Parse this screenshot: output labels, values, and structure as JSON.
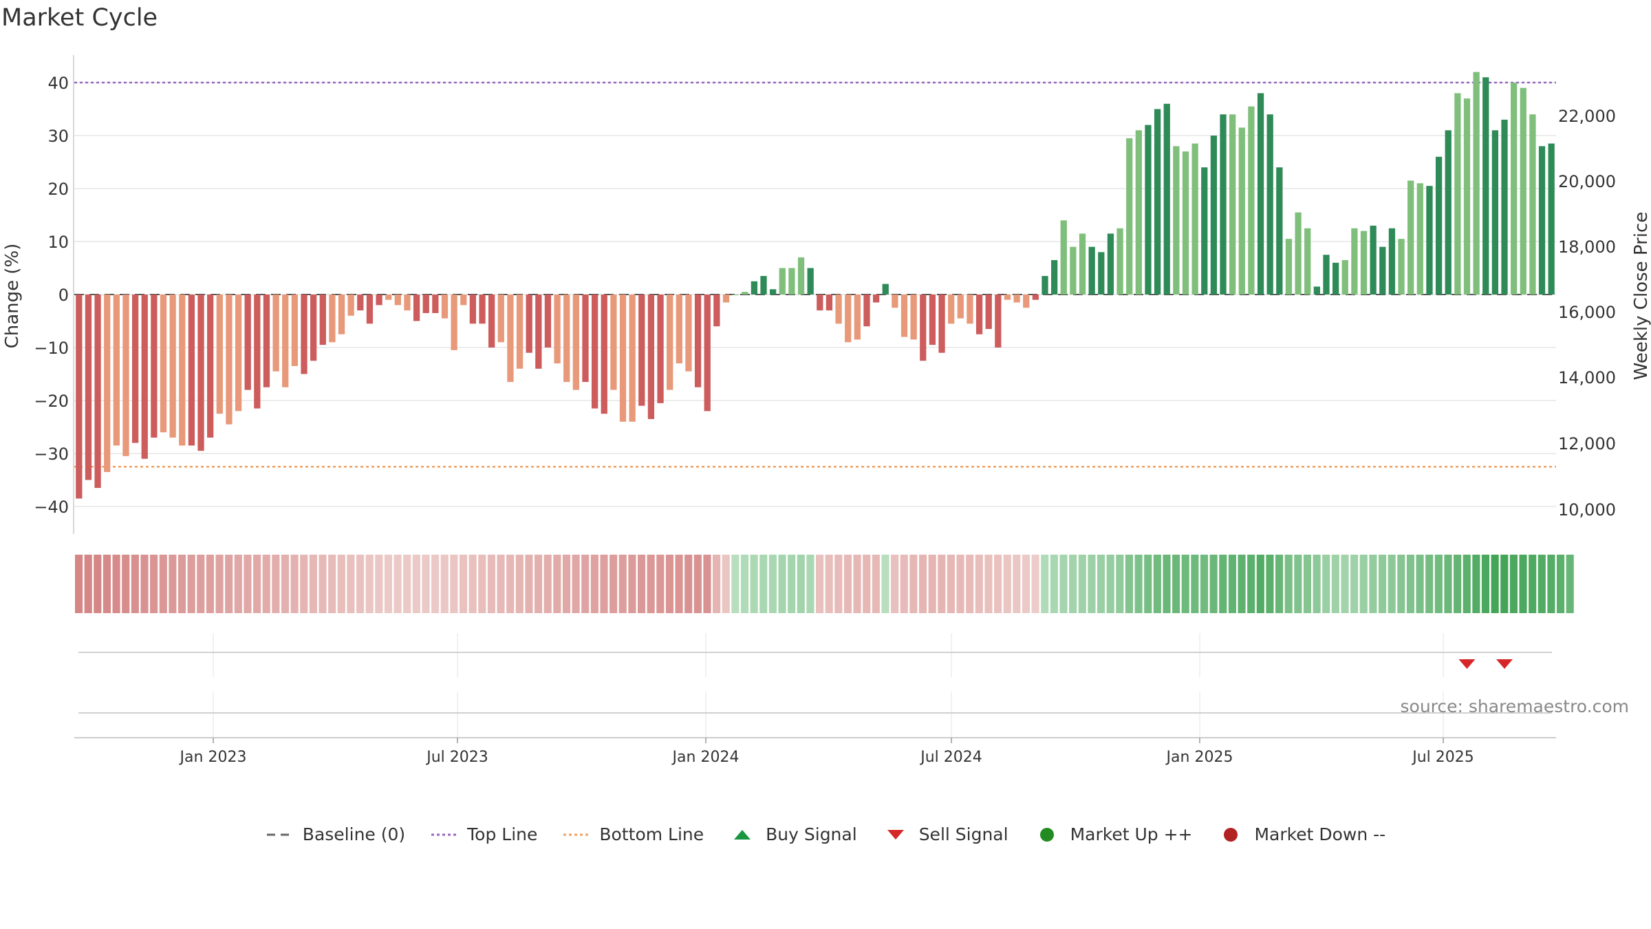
{
  "chart_data": {
    "type": "bar",
    "title": "Market Cycle",
    "ylabel": "Change (%)",
    "y2label": "Weekly Close Price",
    "ylim": [
      -45,
      45
    ],
    "yticks": [
      "40",
      "30",
      "20",
      "10",
      "0",
      "−10",
      "−20",
      "−30",
      "−40"
    ],
    "y2ticks": [
      "22,000",
      "20,000",
      "18,000",
      "16,000",
      "14,000",
      "12,000",
      "10,000"
    ],
    "xticks": [
      "Jan 2023",
      "Jul 2023",
      "Jan 2024",
      "Jul 2024",
      "Jan 2025",
      "Jul 2025"
    ],
    "grid": true,
    "top_line": 40,
    "bottom_line": -32.5,
    "baseline": 0,
    "source_note": "source: sharemaestro.com",
    "values": [
      -38.5,
      -35,
      -36.5,
      -33.5,
      -28.5,
      -30.5,
      -28,
      -31,
      -27,
      -26,
      -27,
      -28.5,
      -28.5,
      -29.5,
      -27,
      -22.5,
      -24.5,
      -22,
      -18,
      -21.5,
      -17.5,
      -14.5,
      -17.5,
      -13.5,
      -15,
      -12.5,
      -9.5,
      -9,
      -7.5,
      -4,
      -3,
      -5.5,
      -2,
      -1,
      -2,
      -3,
      -5,
      -3.5,
      -3.5,
      -4.5,
      -10.5,
      -2,
      -5.5,
      -5.5,
      -10,
      -9,
      -16.5,
      -14,
      -11,
      -14,
      -10,
      -13,
      -16.5,
      -18,
      -16.5,
      -21.5,
      -22.5,
      -18,
      -24,
      -24,
      -21,
      -23.5,
      -20.5,
      -18,
      -13,
      -14.5,
      -17.5,
      -22,
      -6,
      -1.5,
      0,
      0.5,
      2.5,
      3.5,
      1,
      5,
      5,
      7,
      5,
      -3,
      -3,
      -5.5,
      -9,
      -8.5,
      -6,
      -1.5,
      2,
      -2.5,
      -8,
      -8.5,
      -12.5,
      -9.5,
      -11,
      -5.5,
      -4.5,
      -5.5,
      -7.5,
      -6.5,
      -10,
      -1,
      -1.5,
      -2.5,
      -1,
      3.5,
      6.5,
      14,
      9,
      11.5,
      9,
      8,
      11.5,
      12.5,
      29.5,
      31,
      32,
      35,
      36,
      28,
      27,
      28.5,
      24,
      30,
      34,
      34,
      31.5,
      35.5,
      38,
      34,
      24,
      10.5,
      15.5,
      12.5,
      1.5,
      7.5,
      6,
      6.5,
      12.5,
      12,
      13,
      9,
      12.5,
      10.5,
      21.5,
      21,
      20.5,
      26,
      31,
      38,
      37,
      42,
      41,
      31,
      33,
      40,
      39,
      34,
      28,
      28.5
    ],
    "heat": [
      -0.7,
      -0.7,
      -0.7,
      -0.68,
      -0.66,
      -0.64,
      -0.62,
      -0.6,
      -0.58,
      -0.56,
      -0.54,
      -0.52,
      -0.5,
      -0.49,
      -0.48,
      -0.46,
      -0.44,
      -0.42,
      -0.41,
      -0.4,
      -0.38,
      -0.36,
      -0.34,
      -0.32,
      -0.3,
      -0.28,
      -0.26,
      -0.24,
      -0.22,
      -0.2,
      -0.18,
      -0.16,
      -0.14,
      -0.12,
      -0.12,
      -0.12,
      -0.12,
      -0.12,
      -0.12,
      -0.14,
      -0.16,
      -0.18,
      -0.2,
      -0.22,
      -0.24,
      -0.26,
      -0.28,
      -0.3,
      -0.32,
      -0.34,
      -0.36,
      -0.38,
      -0.4,
      -0.42,
      -0.44,
      -0.46,
      -0.48,
      -0.5,
      -0.5,
      -0.52,
      -0.54,
      -0.56,
      -0.56,
      -0.58,
      -0.58,
      -0.6,
      -0.6,
      -0.6,
      -0.3,
      -0.15,
      0.2,
      0.25,
      0.28,
      0.3,
      0.3,
      0.32,
      0.32,
      0.34,
      0.3,
      -0.2,
      -0.22,
      -0.24,
      -0.26,
      -0.28,
      -0.28,
      -0.26,
      0.2,
      -0.2,
      -0.24,
      -0.28,
      -0.3,
      -0.3,
      -0.3,
      -0.28,
      -0.26,
      -0.24,
      -0.22,
      -0.2,
      -0.18,
      -0.16,
      -0.14,
      -0.12,
      -0.1,
      0.25,
      0.3,
      0.32,
      0.34,
      0.36,
      0.38,
      0.4,
      0.42,
      0.45,
      0.55,
      0.58,
      0.62,
      0.66,
      0.7,
      0.7,
      0.68,
      0.68,
      0.66,
      0.7,
      0.74,
      0.76,
      0.78,
      0.8,
      0.85,
      0.8,
      0.72,
      0.6,
      0.56,
      0.52,
      0.48,
      0.4,
      0.36,
      0.34,
      0.36,
      0.4,
      0.44,
      0.46,
      0.48,
      0.52,
      0.56,
      0.6,
      0.64,
      0.66,
      0.7,
      0.74,
      0.8,
      0.85,
      0.9,
      0.95,
      0.95,
      0.9,
      0.9,
      0.88,
      0.86,
      0.84,
      0.8,
      0.72
    ],
    "sell_signals_at": [
      148,
      152
    ]
  },
  "legend": {
    "items": [
      {
        "label": "Baseline (0)",
        "symbol": "dash",
        "color": "#666666"
      },
      {
        "label": "Top Line",
        "symbol": "dot",
        "color": "#9467bd"
      },
      {
        "label": "Bottom Line",
        "symbol": "dot",
        "color": "#f0a060"
      },
      {
        "label": "Buy Signal",
        "symbol": "triangle-up",
        "color": "#1a9641"
      },
      {
        "label": "Sell Signal",
        "symbol": "triangle-down",
        "color": "#d62728"
      },
      {
        "label": "Market Up ++",
        "symbol": "circle",
        "color": "#228b22"
      },
      {
        "label": "Market Down --",
        "symbol": "circle",
        "color": "#b22222"
      }
    ]
  },
  "colors": {
    "neg_dark": "#cd5c5c",
    "neg_light": "#e8997a",
    "pos_dark": "#2e8b57",
    "pos_light": "#7fbf7b",
    "top_line": "#9467bd",
    "bottom_line": "#f0a060",
    "sell": "#d62728"
  }
}
